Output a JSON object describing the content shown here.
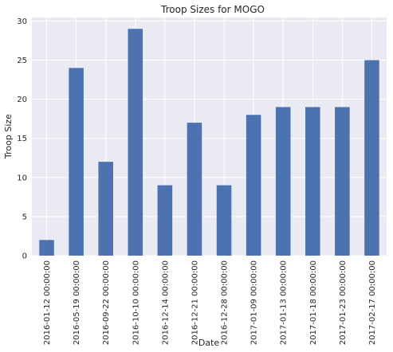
{
  "chart_data": {
    "type": "bar",
    "title": "Troop Sizes for MOGO",
    "xlabel": "Date",
    "ylabel": "Troop Size",
    "categories": [
      "2016-01-12 00:00:00",
      "2016-05-19 00:00:00",
      "2016-09-22 00:00:00",
      "2016-10-10 00:00:00",
      "2016-12-14 00:00:00",
      "2016-12-21 00:00:00",
      "2016-12-28 00:00:00",
      "2017-01-09 00:00:00",
      "2017-01-13 00:00:00",
      "2017-01-18 00:00:00",
      "2017-01-23 00:00:00",
      "2017-02-17 00:00:00"
    ],
    "values": [
      2,
      24,
      12,
      29,
      9,
      17,
      9,
      18,
      19,
      19,
      19,
      25
    ],
    "ylim": [
      0,
      30.45
    ],
    "yticks": [
      0,
      5,
      10,
      15,
      20,
      25,
      30
    ],
    "grid": true,
    "bar_color": "#4c72b0",
    "plot_background": "#eaeaf2",
    "grid_color": "#ffffff"
  }
}
